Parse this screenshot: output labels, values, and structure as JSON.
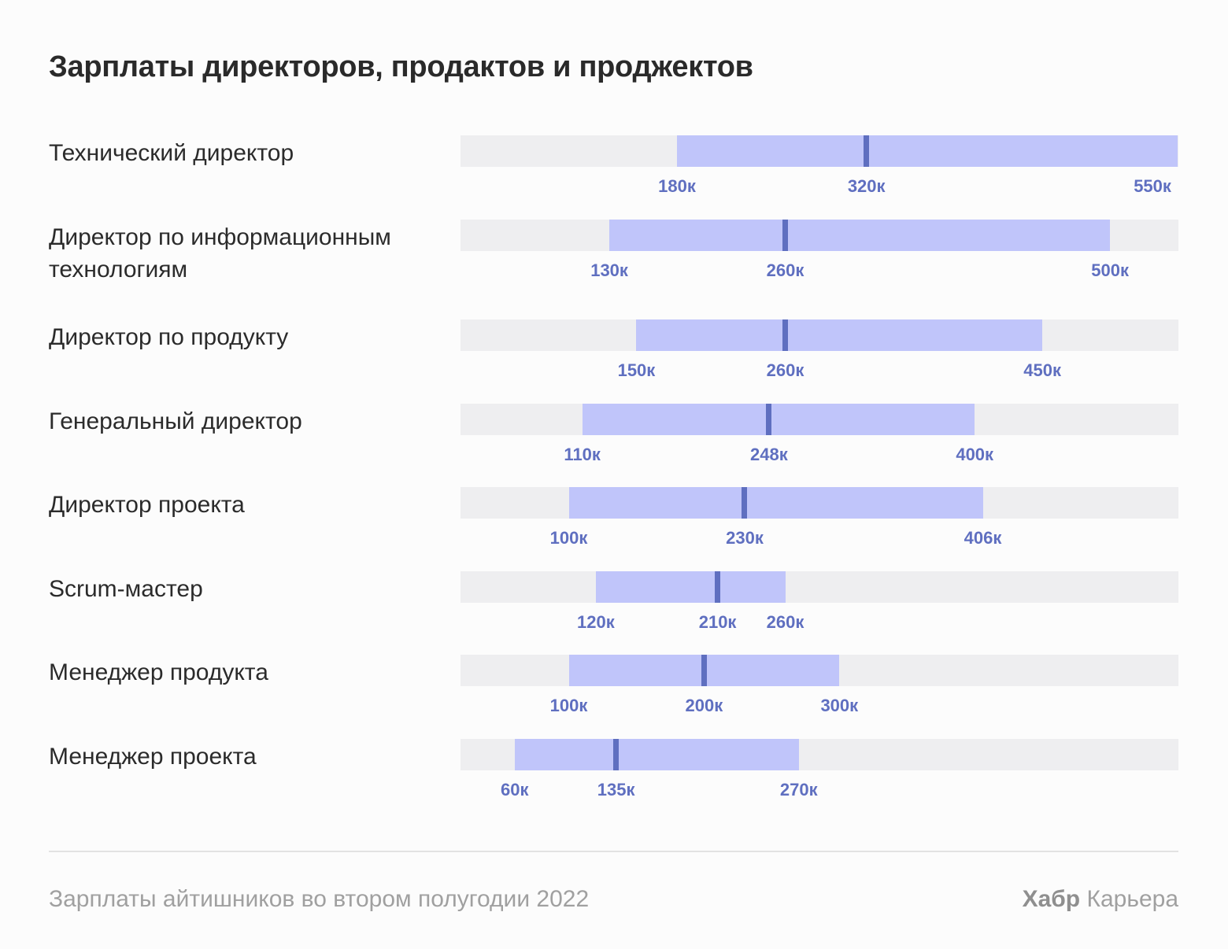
{
  "chart_data": {
    "type": "bar",
    "subtype": "range-with-median",
    "title": "Зарплаты директоров, продактов и проджектов",
    "xlim": [
      20,
      550
    ],
    "unit_suffix": "к",
    "grid": false,
    "colors": {
      "track": "#eeeef0",
      "range": "#c0c5fa",
      "median": "#5f6fc0",
      "labels": "#5f6fc0"
    },
    "categories": [
      "Технический директор",
      "Директор по информационным технологиям",
      "Директор по продукту",
      "Генеральный директор",
      "Директор проекта",
      "Scrum-мастер",
      "Менеджер продукта",
      "Менеджер проекта"
    ],
    "rows": [
      {
        "label": "Технический директор",
        "min": 180,
        "median": 320,
        "max": 550,
        "min_label": "180к",
        "median_label": "320к",
        "max_label": "550к"
      },
      {
        "label": "Директор по информационным технологиям",
        "min": 130,
        "median": 260,
        "max": 500,
        "min_label": "130к",
        "median_label": "260к",
        "max_label": "500к"
      },
      {
        "label": "Директор по продукту",
        "min": 150,
        "median": 260,
        "max": 450,
        "min_label": "150к",
        "median_label": "260к",
        "max_label": "450к"
      },
      {
        "label": "Генеральный директор",
        "min": 110,
        "median": 248,
        "max": 400,
        "min_label": "110к",
        "median_label": "248к",
        "max_label": "400к"
      },
      {
        "label": "Директор проекта",
        "min": 100,
        "median": 230,
        "max": 406,
        "min_label": "100к",
        "median_label": "230к",
        "max_label": "406к"
      },
      {
        "label": "Scrum-мастер",
        "min": 120,
        "median": 210,
        "max": 260,
        "min_label": "120к",
        "median_label": "210к",
        "max_label": "260к"
      },
      {
        "label": "Менеджер продукта",
        "min": 100,
        "median": 200,
        "max": 300,
        "min_label": "100к",
        "median_label": "200к",
        "max_label": "300к"
      },
      {
        "label": "Менеджер проекта",
        "min": 60,
        "median": 135,
        "max": 270,
        "min_label": "60к",
        "median_label": "135к",
        "max_label": "270к"
      }
    ]
  },
  "footer": {
    "source": "Зарплаты айтишников во втором полугодии 2022",
    "brand_bold": "Хабр",
    "brand_rest": "Карьера"
  }
}
